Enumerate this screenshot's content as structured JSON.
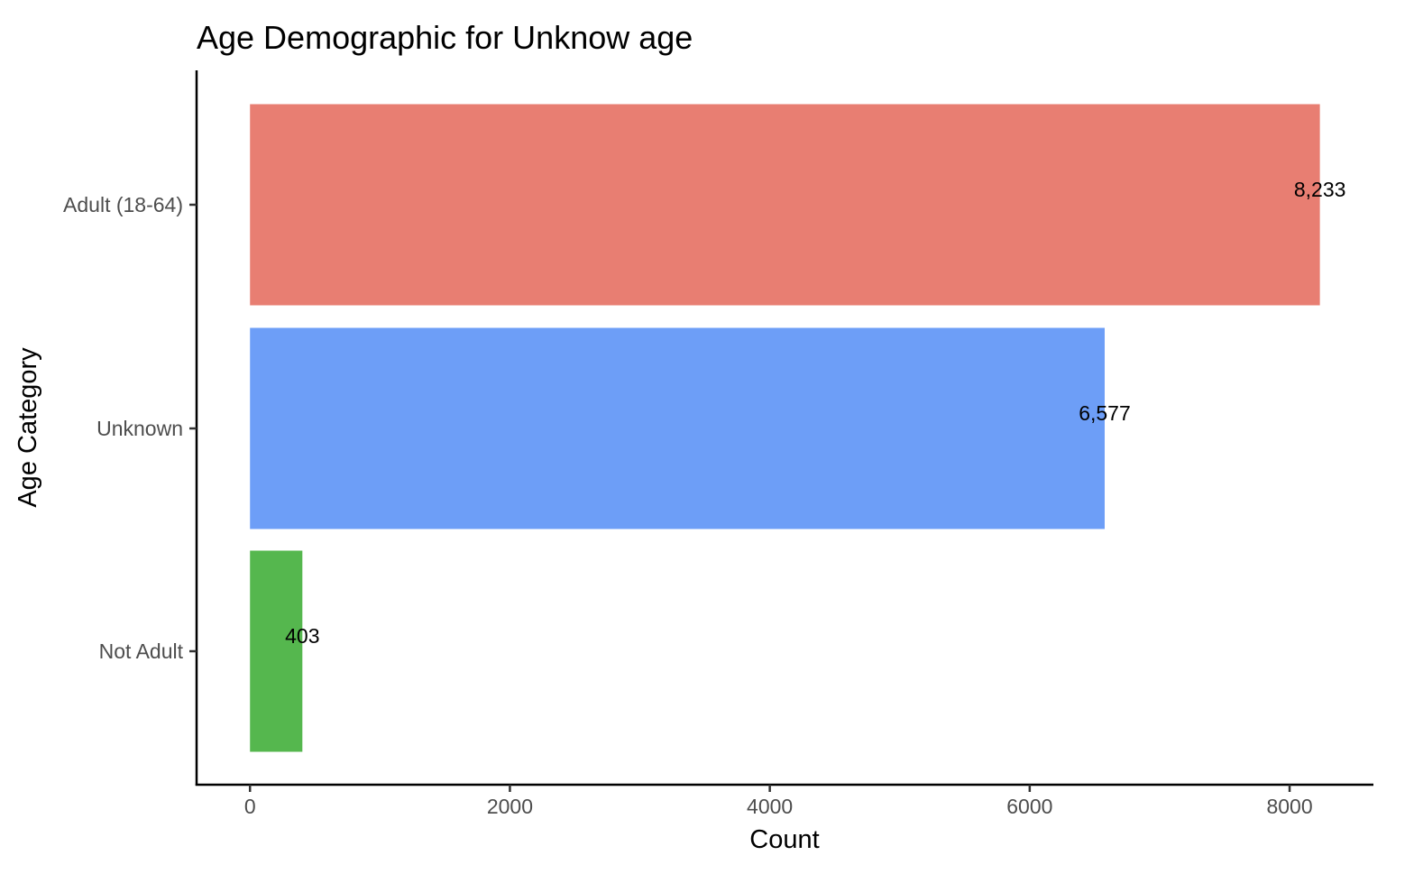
{
  "chart_data": {
    "type": "bar",
    "orientation": "horizontal",
    "title": "Age Demographic for Unknow age",
    "xlabel": "Count",
    "ylabel": "Age Category",
    "categories": [
      "Adult (18-64)",
      "Unknown",
      "Not Adult"
    ],
    "values": [
      8233,
      6577,
      403
    ],
    "data_labels": [
      "8,233",
      "6,577",
      "403"
    ],
    "colors": [
      "#e87e72",
      "#6d9ef7",
      "#55b74e"
    ],
    "x_ticks": [
      0,
      2000,
      4000,
      6000,
      8000
    ],
    "x_tick_labels": [
      "0",
      "2000",
      "4000",
      "6000",
      "8000"
    ],
    "xlim": [
      -411,
      8645
    ],
    "grid": false,
    "legend": "none"
  }
}
